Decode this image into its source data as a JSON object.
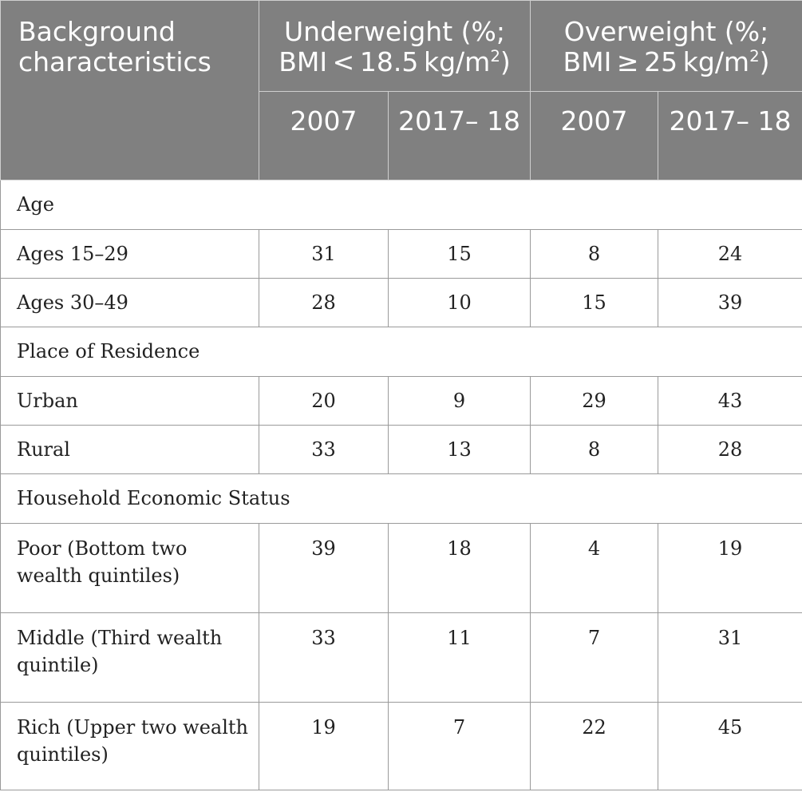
{
  "header": {
    "background_label": "Background characteristics",
    "underweight_label": "Underweight (%; BMI < 18.5 kg/m",
    "underweight_sup": "2",
    "underweight_close": ")",
    "overweight_label": "Overweight (%; BMI ≥ 25 kg/m",
    "overweight_sup": "2",
    "overweight_close": ")",
    "years": [
      "2007",
      "2017– 18",
      "2007",
      "2017– 18"
    ]
  },
  "sections": [
    {
      "title": "Age",
      "rows": [
        {
          "label": "Ages 15–29",
          "values": [
            "31",
            "15",
            "8",
            "24"
          ]
        },
        {
          "label": "Ages 30–49",
          "values": [
            "28",
            "10",
            "15",
            "39"
          ]
        }
      ]
    },
    {
      "title": "Place of Residence",
      "rows": [
        {
          "label": "Urban",
          "values": [
            "20",
            "9",
            "29",
            "43"
          ]
        },
        {
          "label": "Rural",
          "values": [
            "33",
            "13",
            "8",
            "28"
          ]
        }
      ]
    },
    {
      "title": "Household Economic Status",
      "rows": [
        {
          "label": "Poor (Bottom two wealth quintiles)",
          "values": [
            "39",
            "18",
            "4",
            "19"
          ]
        },
        {
          "label": "Middle (Third wealth quintile)",
          "values": [
            "33",
            "11",
            "7",
            "31"
          ]
        },
        {
          "label": "Rich (Upper two wealth quintiles)",
          "values": [
            "19",
            "7",
            "22",
            "45"
          ]
        }
      ]
    }
  ]
}
